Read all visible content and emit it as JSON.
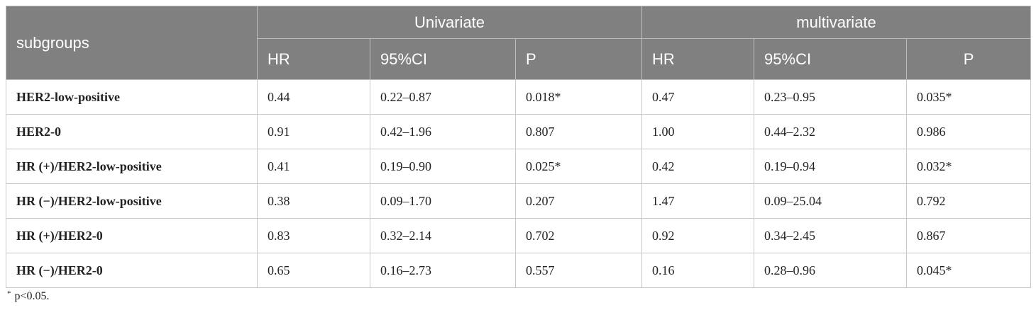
{
  "table": {
    "row_header_label": "subgroups",
    "groups": [
      "Univariate",
      "multivariate"
    ],
    "subheaders": [
      "HR",
      "95%CI",
      "P",
      "HR",
      "95%CI",
      "P"
    ],
    "rows": [
      {
        "label": "HER2-low-positive",
        "cells": [
          "0.44",
          "0.22–0.87",
          "0.018*",
          "0.47",
          "0.23–0.95",
          "0.035*"
        ]
      },
      {
        "label": "HER2-0",
        "cells": [
          "0.91",
          "0.42–1.96",
          "0.807",
          "1.00",
          "0.44–2.32",
          "0.986"
        ]
      },
      {
        "label": "HR (+)/HER2-low-positive",
        "cells": [
          "0.41",
          "0.19–0.90",
          "0.025*",
          "0.42",
          "0.19–0.94",
          "0.032*"
        ]
      },
      {
        "label": "HR (−)/HER2-low-positive",
        "cells": [
          "0.38",
          "0.09–1.70",
          "0.207",
          "1.47",
          "0.09–25.04",
          "0.792"
        ]
      },
      {
        "label": "HR (+)/HER2-0",
        "cells": [
          "0.83",
          "0.32–2.14",
          "0.702",
          "0.92",
          "0.34–2.45",
          "0.867"
        ]
      },
      {
        "label": "HR (−)/HER2-0",
        "cells": [
          "0.65",
          "0.16–2.73",
          "0.557",
          "0.16",
          "0.28–0.96",
          "0.045*"
        ]
      }
    ]
  },
  "footnote": {
    "marker": "*",
    "text": "p<0.05."
  }
}
